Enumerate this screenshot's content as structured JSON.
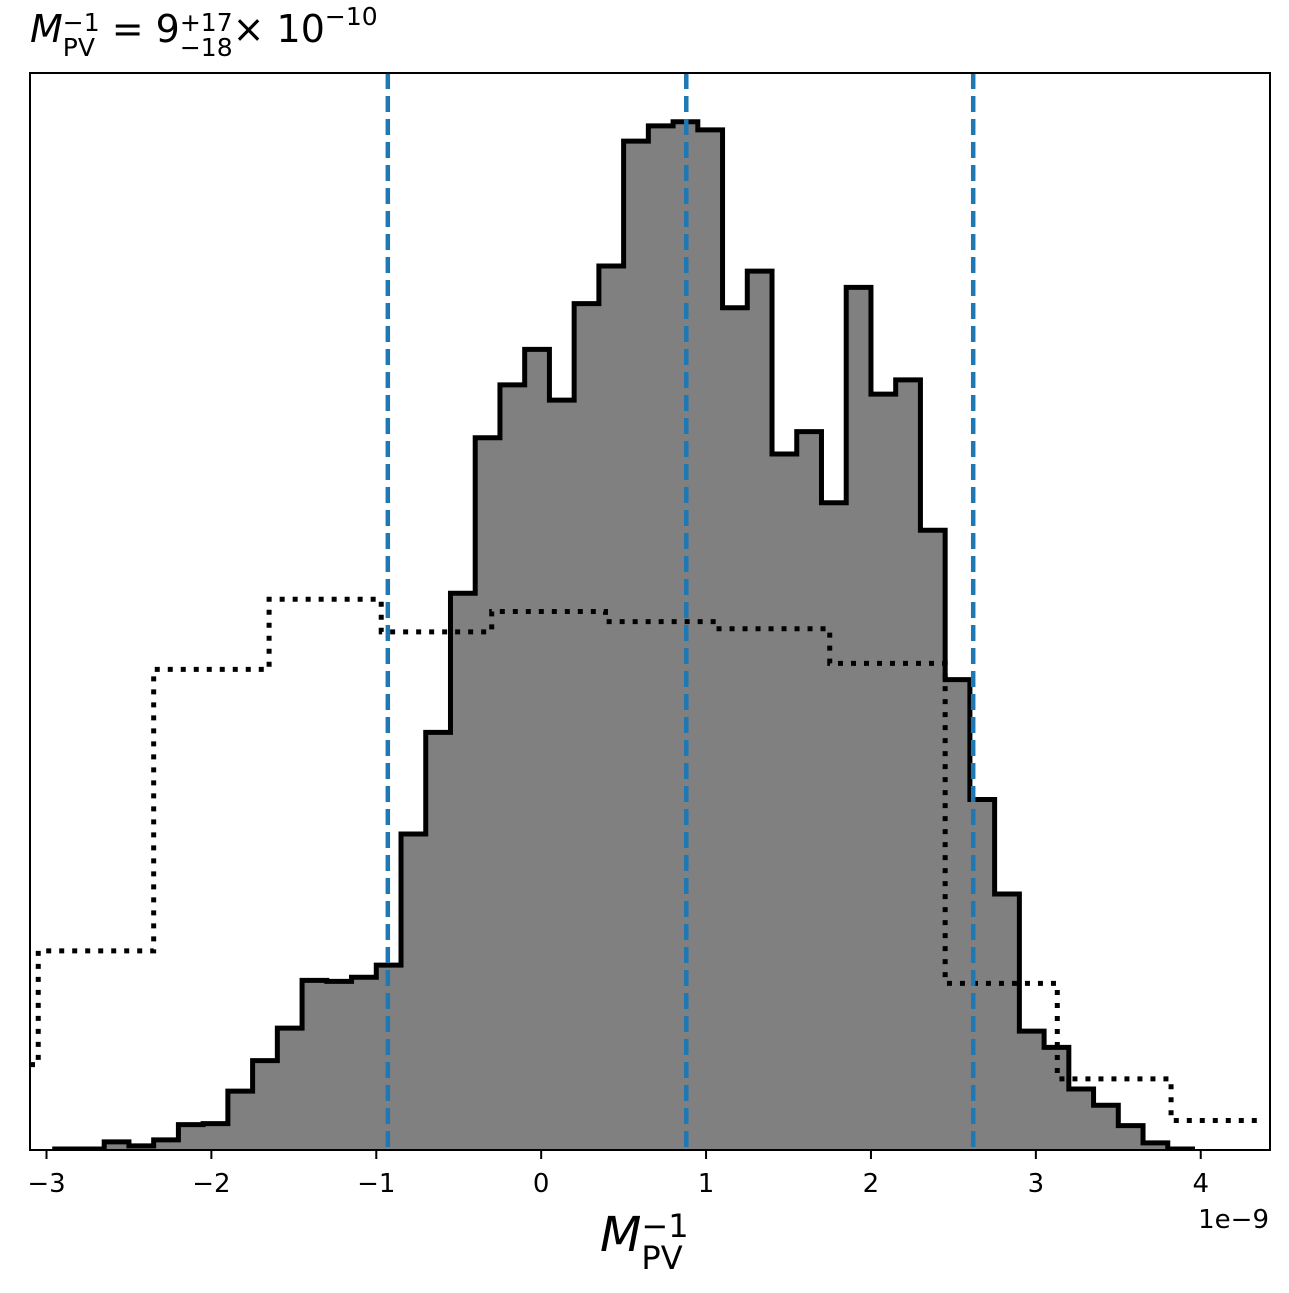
{
  "chart_data": {
    "type": "histogram",
    "title": {
      "lhs": "M",
      "lhs_sub": "PV",
      "lhs_sup": "−1",
      "median": "9",
      "plus": "+17",
      "minus": "−18",
      "scale": "× 10",
      "scale_exp": "−10"
    },
    "xlabel": {
      "symbol": "M",
      "sub": "PV",
      "sup": "−1"
    },
    "x_offset_label": "1e−9",
    "xlim": [
      -3.1,
      4.42
    ],
    "x_ticks": [
      -3,
      -2,
      -1,
      0,
      1,
      2,
      3,
      4
    ],
    "x_tick_labels": [
      "−3",
      "−2",
      "−1",
      "0",
      "1",
      "2",
      "3",
      "4"
    ],
    "y_ticks_visible": false,
    "posterior": {
      "style": "filled gray step with black outline",
      "fill_color": "#808080",
      "edge_color": "#000000",
      "bin_edges": [
        -2.95,
        -2.8,
        -2.65,
        -2.5,
        -2.35,
        -2.2,
        -2.05,
        -1.9,
        -1.75,
        -1.6,
        -1.45,
        -1.3,
        -1.15,
        -1.0,
        -0.85,
        -0.7,
        -0.55,
        -0.4,
        -0.25,
        -0.1,
        0.05,
        0.2,
        0.35,
        0.5,
        0.65,
        0.8,
        0.95,
        1.1,
        1.25,
        1.4,
        1.55,
        1.7,
        1.85,
        2.0,
        2.15,
        2.3,
        2.45,
        2.6,
        2.75,
        2.9,
        3.05,
        3.2,
        3.35,
        3.5,
        3.65,
        3.8,
        3.95
      ],
      "heights": [
        1,
        1,
        8,
        4,
        10,
        25,
        26,
        58,
        88,
        120,
        167,
        166,
        170,
        182,
        311,
        411,
        548,
        701,
        753,
        788,
        738,
        833,
        870,
        993,
        1008,
        1012,
        1004,
        829,
        865,
        685,
        707,
        637,
        849,
        744,
        758,
        610,
        463,
        345,
        252,
        117,
        101,
        60,
        44,
        24,
        7,
        1
      ]
    },
    "prior": {
      "style": "dotted step, no fill",
      "edge_color": "#000000",
      "bin_edges": [
        -3.1,
        -3.05,
        -2.35,
        -1.65,
        -0.97,
        -0.3,
        0.39,
        1.06,
        1.75,
        2.45,
        3.13,
        3.82,
        4.35
      ],
      "heights": [
        84,
        196,
        473,
        542,
        510,
        530,
        520,
        513,
        479,
        164,
        70,
        29
      ]
    },
    "vlines": {
      "color": "#1f77b4",
      "style": "dashed",
      "values": [
        -0.93,
        0.88,
        2.62
      ]
    }
  }
}
